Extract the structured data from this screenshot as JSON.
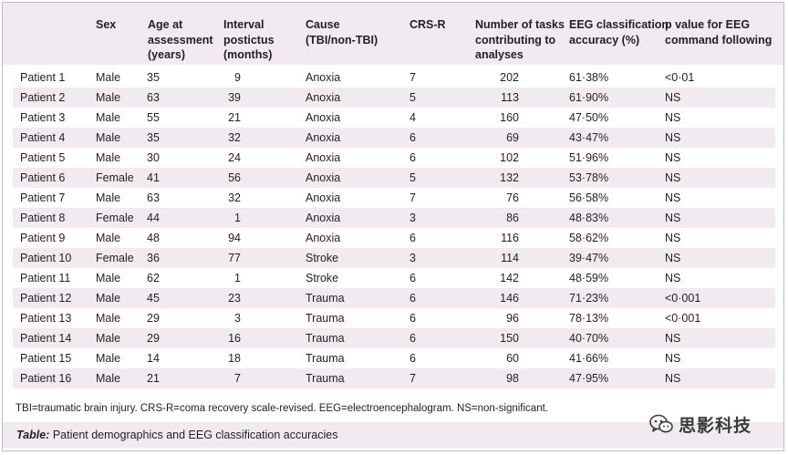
{
  "table": {
    "headers": [
      "",
      "Sex",
      "Age at\nassessment\n(years)",
      "Interval\npostictus\n(months)",
      "Cause\n(TBI/non-TBI)",
      "CRS-R",
      "Number of tasks\ncontributing to\nanalyses",
      "EEG classification\naccuracy (%)",
      "p value for EEG\ncommand following"
    ],
    "rows": [
      [
        "Patient 1",
        "Male",
        "35",
        "9",
        "Anoxia",
        "7",
        "202",
        "61·38%",
        "<0·01"
      ],
      [
        "Patient 2",
        "Male",
        "63",
        "39",
        "Anoxia",
        "5",
        "113",
        "61·90%",
        "NS"
      ],
      [
        "Patient 3",
        "Male",
        "55",
        "21",
        "Anoxia",
        "4",
        "160",
        "47·50%",
        "NS"
      ],
      [
        "Patient 4",
        "Male",
        "35",
        "32",
        "Anoxia",
        "6",
        "69",
        "43·47%",
        "NS"
      ],
      [
        "Patient 5",
        "Male",
        "30",
        "24",
        "Anoxia",
        "6",
        "102",
        "51·96%",
        "NS"
      ],
      [
        "Patient 6",
        "Female",
        "41",
        "56",
        "Anoxia",
        "5",
        "132",
        "53·78%",
        "NS"
      ],
      [
        "Patient 7",
        "Male",
        "63",
        "32",
        "Anoxia",
        "7",
        "76",
        "56·58%",
        "NS"
      ],
      [
        "Patient 8",
        "Female",
        "44",
        "1",
        "Anoxia",
        "3",
        "86",
        "48·83%",
        "NS"
      ],
      [
        "Patient 9",
        "Male",
        "48",
        "94",
        "Anoxia",
        "6",
        "116",
        "58·62%",
        "NS"
      ],
      [
        "Patient 10",
        "Female",
        "36",
        "77",
        "Stroke",
        "3",
        "114",
        "39·47%",
        "NS"
      ],
      [
        "Patient 11",
        "Male",
        "62",
        "1",
        "Stroke",
        "6",
        "142",
        "48·59%",
        "NS"
      ],
      [
        "Patient 12",
        "Male",
        "45",
        "23",
        "Trauma",
        "6",
        "146",
        "71·23%",
        "<0·001"
      ],
      [
        "Patient 13",
        "Male",
        "29",
        "3",
        "Trauma",
        "6",
        "96",
        "78·13%",
        "<0·001"
      ],
      [
        "Patient 14",
        "Male",
        "29",
        "16",
        "Trauma",
        "6",
        "150",
        "40·70%",
        "NS"
      ],
      [
        "Patient 15",
        "Male",
        "14",
        "18",
        "Trauma",
        "6",
        "60",
        "41·66%",
        "NS"
      ],
      [
        "Patient 16",
        "Male",
        "21",
        "7",
        "Trauma",
        "7",
        "98",
        "47·95%",
        "NS"
      ]
    ]
  },
  "footnote": "TBI=traumatic brain injury. CRS-R=coma recovery scale-revised. EEG=electroencephalogram. NS=non-significant.",
  "caption": {
    "lead": "Table:",
    "text": " Patient demographics and EEG classification accuracies"
  },
  "watermark": {
    "icon": "wechat-icon",
    "text": "思影科技"
  },
  "colors": {
    "band": "#f2eaf1",
    "border": "#c7b8c4",
    "text": "#231f20"
  }
}
